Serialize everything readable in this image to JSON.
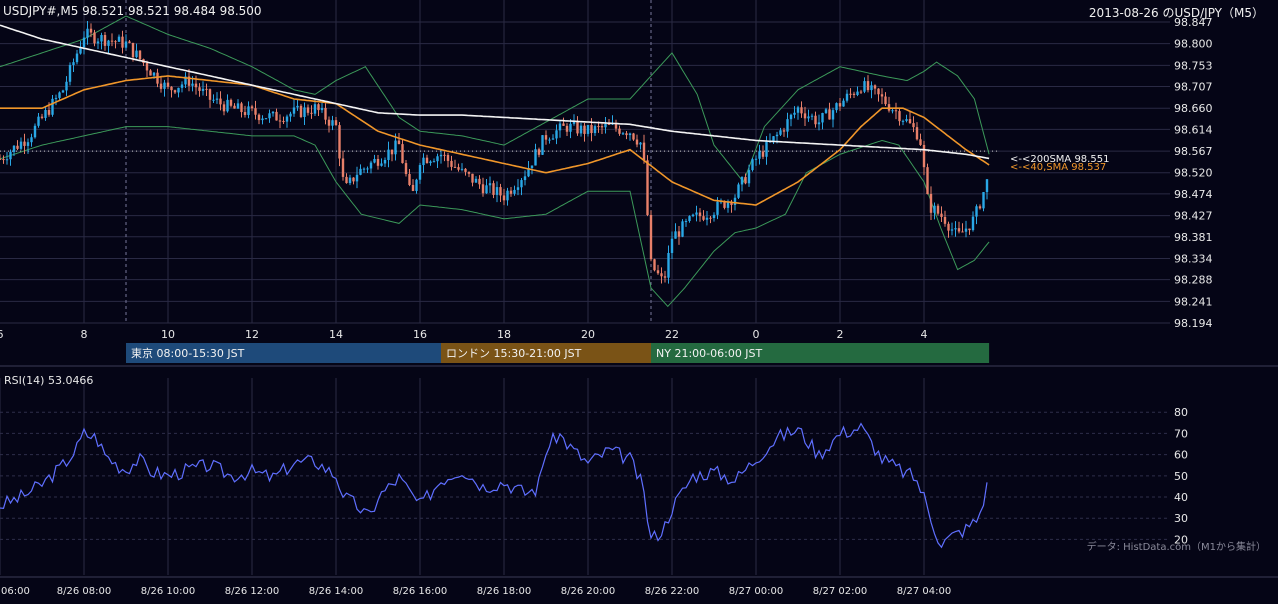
{
  "header": {
    "symbol_ohlc": "USDJPY#,M5 98.521 98.521 98.484 98.500",
    "title_right": "2013-08-26 のUSD/JPY（M5）"
  },
  "colors": {
    "background": "#050516",
    "up_candle": "#2aa8e6",
    "down_candle": "#e8806a",
    "sma200": "#f4f4f4",
    "sma40": "#f0962a",
    "bollinger": "#3c9a5a",
    "rsi": "#5f6fff",
    "grid": "#2a2a44",
    "tokyo": "#1e4a7a",
    "london": "#7a5316",
    "ny": "#246a40"
  },
  "sessions": [
    {
      "label": "東京 08:00-15:30 JST"
    },
    {
      "label": "ロンドン 15:30-21:00 JST"
    },
    {
      "label": "NY 21:00-06:00 JST"
    }
  ],
  "annotations": {
    "sma200_label": "<-<200SMA 98.551",
    "sma40_label": "<-<40,SMA 98.537"
  },
  "rsi_panel": {
    "label": "RSI(14) 53.0466",
    "source": "データ: HistData.com（M1から集計）"
  },
  "price_axis_labels": [
    "98.847",
    "98.800",
    "98.753",
    "98.707",
    "98.660",
    "98.614",
    "98.567",
    "98.520",
    "98.474",
    "98.427",
    "98.381",
    "98.334",
    "98.288",
    "98.241",
    "98.194"
  ],
  "hour_axis_labels": [
    "6",
    "8",
    "10",
    "12",
    "14",
    "16",
    "18",
    "20",
    "22",
    "0",
    "2",
    "4"
  ],
  "time_axis_labels": [
    "06:00",
    "8/26 08:00",
    "8/26 10:00",
    "8/26 12:00",
    "8/26 14:00",
    "8/26 16:00",
    "8/26 18:00",
    "8/26 20:00",
    "8/26 22:00",
    "8/27 00:00",
    "8/27 02:00",
    "8/27 04:00"
  ],
  "rsi_axis_labels": [
    "80",
    "70",
    "60",
    "50",
    "40",
    "30",
    "20"
  ],
  "chart_data": [
    {
      "type": "candlestick",
      "title": "2013-08-26 のUSD/JPY（M5）",
      "ylim": [
        98.194,
        98.847
      ],
      "x_hours": [
        6,
        8,
        10,
        12,
        14,
        16,
        18,
        20,
        22,
        24,
        26,
        28
      ],
      "current_price": 98.567,
      "anchors": {
        "close": [
          [
            6,
            98.55
          ],
          [
            6.7,
            98.6
          ],
          [
            7.5,
            98.7
          ],
          [
            8,
            98.82
          ],
          [
            9,
            98.8
          ],
          [
            9.5,
            98.75
          ],
          [
            10,
            98.7
          ],
          [
            10.5,
            98.72
          ],
          [
            11,
            98.68
          ],
          [
            11.5,
            98.66
          ],
          [
            12,
            98.65
          ],
          [
            12.5,
            98.64
          ],
          [
            13,
            98.65
          ],
          [
            13.5,
            98.66
          ],
          [
            14,
            98.62
          ],
          [
            14.2,
            98.48
          ],
          [
            14.5,
            98.52
          ],
          [
            15,
            98.55
          ],
          [
            15.5,
            98.58
          ],
          [
            15.8,
            98.46
          ],
          [
            16,
            98.55
          ],
          [
            16.5,
            98.56
          ],
          [
            17,
            98.52
          ],
          [
            17.5,
            98.49
          ],
          [
            18,
            98.47
          ],
          [
            18.5,
            98.52
          ],
          [
            19,
            98.6
          ],
          [
            19.5,
            98.62
          ],
          [
            20,
            98.61
          ],
          [
            20.5,
            98.62
          ],
          [
            21,
            98.61
          ],
          [
            21.3,
            98.58
          ],
          [
            21.5,
            98.32
          ],
          [
            21.8,
            98.28
          ],
          [
            22,
            98.38
          ],
          [
            22.5,
            98.42
          ],
          [
            23,
            98.44
          ],
          [
            23.5,
            98.47
          ],
          [
            24,
            98.55
          ],
          [
            24.5,
            98.6
          ],
          [
            25,
            98.66
          ],
          [
            25.5,
            98.63
          ],
          [
            26,
            98.67
          ],
          [
            26.5,
            98.71
          ],
          [
            27,
            98.68
          ],
          [
            27.5,
            98.64
          ],
          [
            27.9,
            98.6
          ],
          [
            28.1,
            98.45
          ],
          [
            28.5,
            98.42
          ],
          [
            28.8,
            98.38
          ],
          [
            29.2,
            98.42
          ],
          [
            29.5,
            98.5
          ]
        ],
        "sma200": [
          [
            6,
            98.84
          ],
          [
            7,
            98.81
          ],
          [
            8,
            98.79
          ],
          [
            9,
            98.77
          ],
          [
            10,
            98.75
          ],
          [
            11,
            98.73
          ],
          [
            12,
            98.71
          ],
          [
            13,
            98.69
          ],
          [
            14,
            98.67
          ],
          [
            15,
            98.65
          ],
          [
            16,
            98.645
          ],
          [
            17,
            98.645
          ],
          [
            18,
            98.64
          ],
          [
            19,
            98.635
          ],
          [
            20,
            98.63
          ],
          [
            21,
            98.625
          ],
          [
            22,
            98.61
          ],
          [
            23,
            98.6
          ],
          [
            24,
            98.59
          ],
          [
            25,
            98.585
          ],
          [
            26,
            98.58
          ],
          [
            27,
            98.575
          ],
          [
            28,
            98.57
          ],
          [
            29,
            98.56
          ],
          [
            29.55,
            98.551
          ]
        ],
        "sma40": [
          [
            6,
            98.66
          ],
          [
            7,
            98.66
          ],
          [
            8,
            98.7
          ],
          [
            9,
            98.72
          ],
          [
            10,
            98.73
          ],
          [
            11,
            98.72
          ],
          [
            12,
            98.71
          ],
          [
            13,
            98.68
          ],
          [
            14,
            98.67
          ],
          [
            15,
            98.61
          ],
          [
            16,
            98.58
          ],
          [
            17,
            98.56
          ],
          [
            18,
            98.54
          ],
          [
            19,
            98.52
          ],
          [
            20,
            98.54
          ],
          [
            21,
            98.57
          ],
          [
            22,
            98.5
          ],
          [
            23,
            98.46
          ],
          [
            24,
            98.45
          ],
          [
            25,
            98.5
          ],
          [
            26,
            98.57
          ],
          [
            26.5,
            98.62
          ],
          [
            27,
            98.66
          ],
          [
            27.5,
            98.66
          ],
          [
            28,
            98.64
          ],
          [
            29,
            98.57
          ],
          [
            29.55,
            98.537
          ]
        ],
        "bb_upper": [
          [
            6,
            98.75
          ],
          [
            7,
            98.78
          ],
          [
            8,
            98.81
          ],
          [
            9,
            98.86
          ],
          [
            10,
            98.82
          ],
          [
            11,
            98.79
          ],
          [
            12,
            98.75
          ],
          [
            13,
            98.7
          ],
          [
            13.5,
            98.69
          ],
          [
            14,
            98.72
          ],
          [
            14.7,
            98.75
          ],
          [
            15.5,
            98.64
          ],
          [
            16,
            98.61
          ],
          [
            17,
            98.6
          ],
          [
            18,
            98.58
          ],
          [
            19,
            98.63
          ],
          [
            20,
            98.68
          ],
          [
            21,
            98.68
          ],
          [
            21.5,
            98.73
          ],
          [
            22,
            98.78
          ],
          [
            22.6,
            98.69
          ],
          [
            23,
            98.58
          ],
          [
            23.7,
            98.5
          ],
          [
            24.2,
            98.62
          ],
          [
            25,
            98.7
          ],
          [
            26,
            98.75
          ],
          [
            26.5,
            98.74
          ],
          [
            27,
            98.73
          ],
          [
            27.6,
            98.72
          ],
          [
            28,
            98.74
          ],
          [
            28.3,
            98.76
          ],
          [
            28.8,
            98.73
          ],
          [
            29.2,
            98.68
          ],
          [
            29.55,
            98.56
          ]
        ],
        "bb_lower": [
          [
            6,
            98.55
          ],
          [
            7,
            98.58
          ],
          [
            8,
            98.6
          ],
          [
            9,
            98.62
          ],
          [
            10,
            98.62
          ],
          [
            11,
            98.61
          ],
          [
            12,
            98.6
          ],
          [
            13,
            98.6
          ],
          [
            13.5,
            98.58
          ],
          [
            14,
            98.5
          ],
          [
            14.6,
            98.43
          ],
          [
            15.5,
            98.41
          ],
          [
            16,
            98.45
          ],
          [
            17,
            98.44
          ],
          [
            18,
            98.42
          ],
          [
            19,
            98.43
          ],
          [
            20,
            98.48
          ],
          [
            21,
            98.48
          ],
          [
            21.5,
            98.27
          ],
          [
            21.9,
            98.23
          ],
          [
            22.3,
            98.27
          ],
          [
            23,
            98.35
          ],
          [
            23.5,
            98.39
          ],
          [
            24,
            98.4
          ],
          [
            24.7,
            98.43
          ],
          [
            25.2,
            98.52
          ],
          [
            26,
            98.56
          ],
          [
            27,
            98.59
          ],
          [
            27.4,
            98.58
          ],
          [
            28,
            98.5
          ],
          [
            28.4,
            98.4
          ],
          [
            28.8,
            98.31
          ],
          [
            29.2,
            98.33
          ],
          [
            29.55,
            98.37
          ]
        ]
      }
    },
    {
      "type": "line",
      "title": "RSI(14) 53.0466",
      "ylim": [
        15,
        82
      ],
      "series": [
        {
          "name": "RSI(14)",
          "anchors": [
            [
              6,
              36
            ],
            [
              6.5,
              40
            ],
            [
              7,
              46
            ],
            [
              7.5,
              55
            ],
            [
              7.8,
              62
            ],
            [
              8,
              70
            ],
            [
              8.3,
              68
            ],
            [
              8.5,
              60
            ],
            [
              8.8,
              55
            ],
            [
              9,
              53
            ],
            [
              9.3,
              58
            ],
            [
              9.6,
              52
            ],
            [
              10,
              50
            ],
            [
              10.5,
              53
            ],
            [
              11,
              55
            ],
            [
              11.5,
              50
            ],
            [
              12,
              52
            ],
            [
              12.5,
              49
            ],
            [
              13,
              56
            ],
            [
              13.5,
              57
            ],
            [
              14,
              50
            ],
            [
              14.2,
              40
            ],
            [
              14.5,
              36
            ],
            [
              14.8,
              30
            ],
            [
              15,
              40
            ],
            [
              15.5,
              49
            ],
            [
              16,
              36
            ],
            [
              16.5,
              48
            ],
            [
              17,
              53
            ],
            [
              17.5,
              45
            ],
            [
              18,
              47
            ],
            [
              18.5,
              42
            ],
            [
              18.8,
              44
            ],
            [
              19,
              62
            ],
            [
              19.3,
              70
            ],
            [
              19.6,
              63
            ],
            [
              20,
              56
            ],
            [
              20.5,
              62
            ],
            [
              21,
              58
            ],
            [
              21.3,
              45
            ],
            [
              21.5,
              20
            ],
            [
              21.8,
              25
            ],
            [
              22,
              35
            ],
            [
              22.5,
              50
            ],
            [
              23,
              52
            ],
            [
              23.5,
              48
            ],
            [
              24,
              58
            ],
            [
              24.5,
              68
            ],
            [
              25,
              72
            ],
            [
              25.5,
              60
            ],
            [
              26,
              70
            ],
            [
              26.5,
              73
            ],
            [
              27,
              58
            ],
            [
              27.5,
              52
            ],
            [
              27.8,
              49
            ],
            [
              28,
              40
            ],
            [
              28.2,
              28
            ],
            [
              28.4,
              18
            ],
            [
              28.7,
              22
            ],
            [
              29,
              25
            ],
            [
              29.3,
              30
            ],
            [
              29.5,
              45
            ],
            [
              29.55,
              53
            ]
          ]
        }
      ]
    }
  ]
}
